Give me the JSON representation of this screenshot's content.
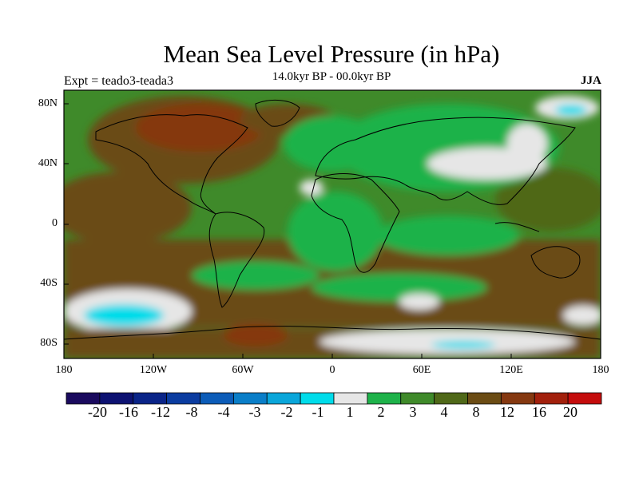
{
  "title": "Mean Sea Level Pressure (in hPa)",
  "subtitle": "14.0kyr BP - 00.0kyr BP",
  "experiment": "Expt = teado3-teada3",
  "season": "JJA",
  "map": {
    "y_ticks": [
      "80N",
      "40N",
      "0",
      "40S",
      "80S"
    ],
    "x_ticks": [
      "180",
      "120W",
      "60W",
      "0",
      "60E",
      "120E",
      "180"
    ]
  },
  "colorbar": {
    "labels": [
      "-20",
      "-16",
      "-12",
      "-8",
      "-4",
      "-3",
      "-2",
      "-1",
      "1",
      "2",
      "3",
      "4",
      "8",
      "12",
      "16",
      "20"
    ],
    "colors": [
      "#1a0a5e",
      "#0d1272",
      "#0a2488",
      "#0b3ca0",
      "#0c5cb8",
      "#0a7ec8",
      "#0aa6da",
      "#00dcea",
      "#e6e6e6",
      "#1eb24a",
      "#3f8a2a",
      "#4f6818",
      "#6b4c14",
      "#853810",
      "#a2200c",
      "#c40c0c"
    ]
  },
  "palette": {
    "green2": "#1eb24a",
    "green3": "#3f8a2a",
    "olive4": "#4f6818",
    "brown8": "#6b4c14",
    "rust12": "#853810",
    "red16": "#a2200c",
    "white1": "#e6e6e6",
    "cyan": "#00dcea"
  }
}
